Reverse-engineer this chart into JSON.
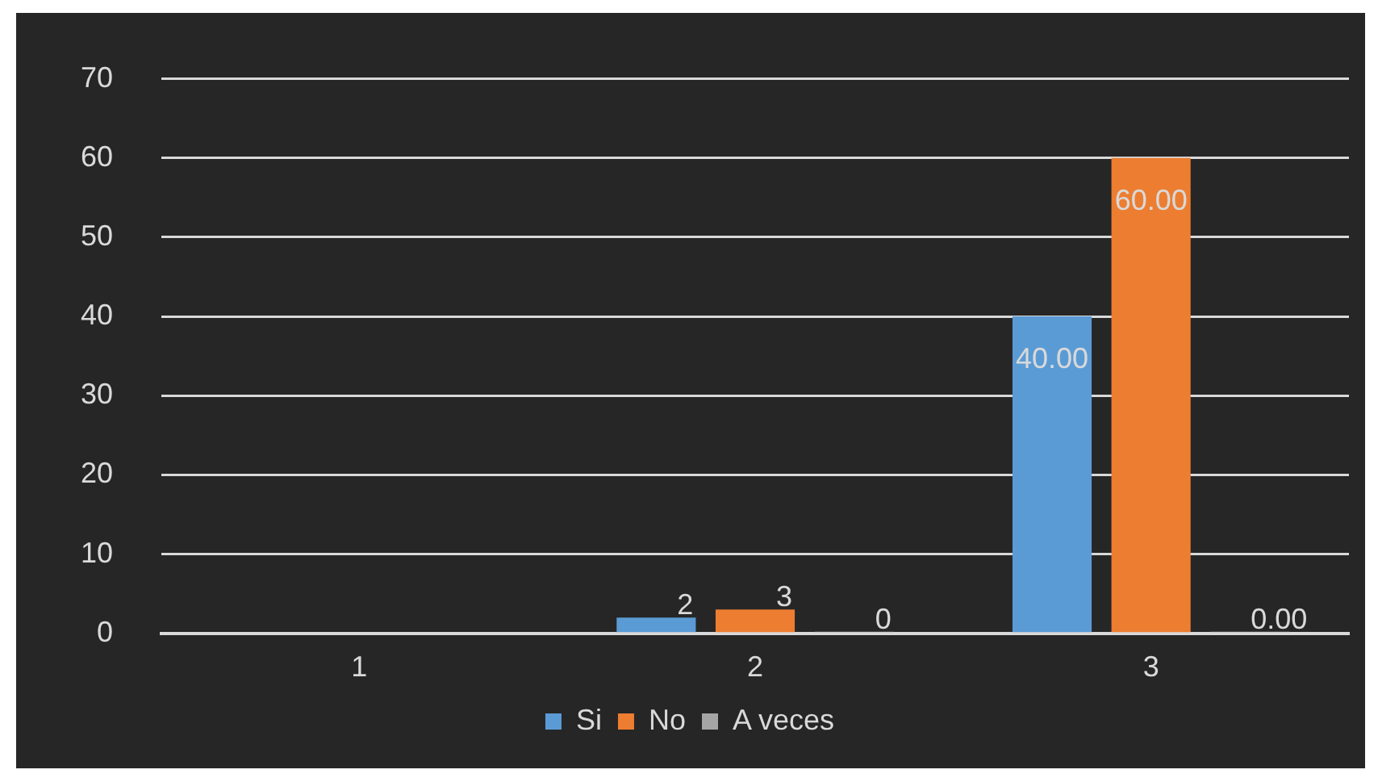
{
  "chart_data": {
    "type": "bar",
    "categories": [
      "1",
      "2",
      "3"
    ],
    "series": [
      {
        "name": "Si",
        "color": "#5b9bd5",
        "values": [
          null,
          2,
          40
        ],
        "value_labels": [
          null,
          "2",
          "40.00"
        ]
      },
      {
        "name": "No",
        "color": "#ed7d31",
        "values": [
          null,
          3,
          60
        ],
        "value_labels": [
          null,
          "3",
          "60.00"
        ]
      },
      {
        "name": "A veces",
        "color": "#a5a5a5",
        "values": [
          null,
          0,
          0
        ],
        "value_labels": [
          null,
          "0",
          "0.00"
        ]
      }
    ],
    "ylim": [
      0,
      70
    ],
    "yticks": [
      0,
      10,
      20,
      30,
      40,
      50,
      60,
      70
    ],
    "grid": "y",
    "legend": "bottom"
  }
}
